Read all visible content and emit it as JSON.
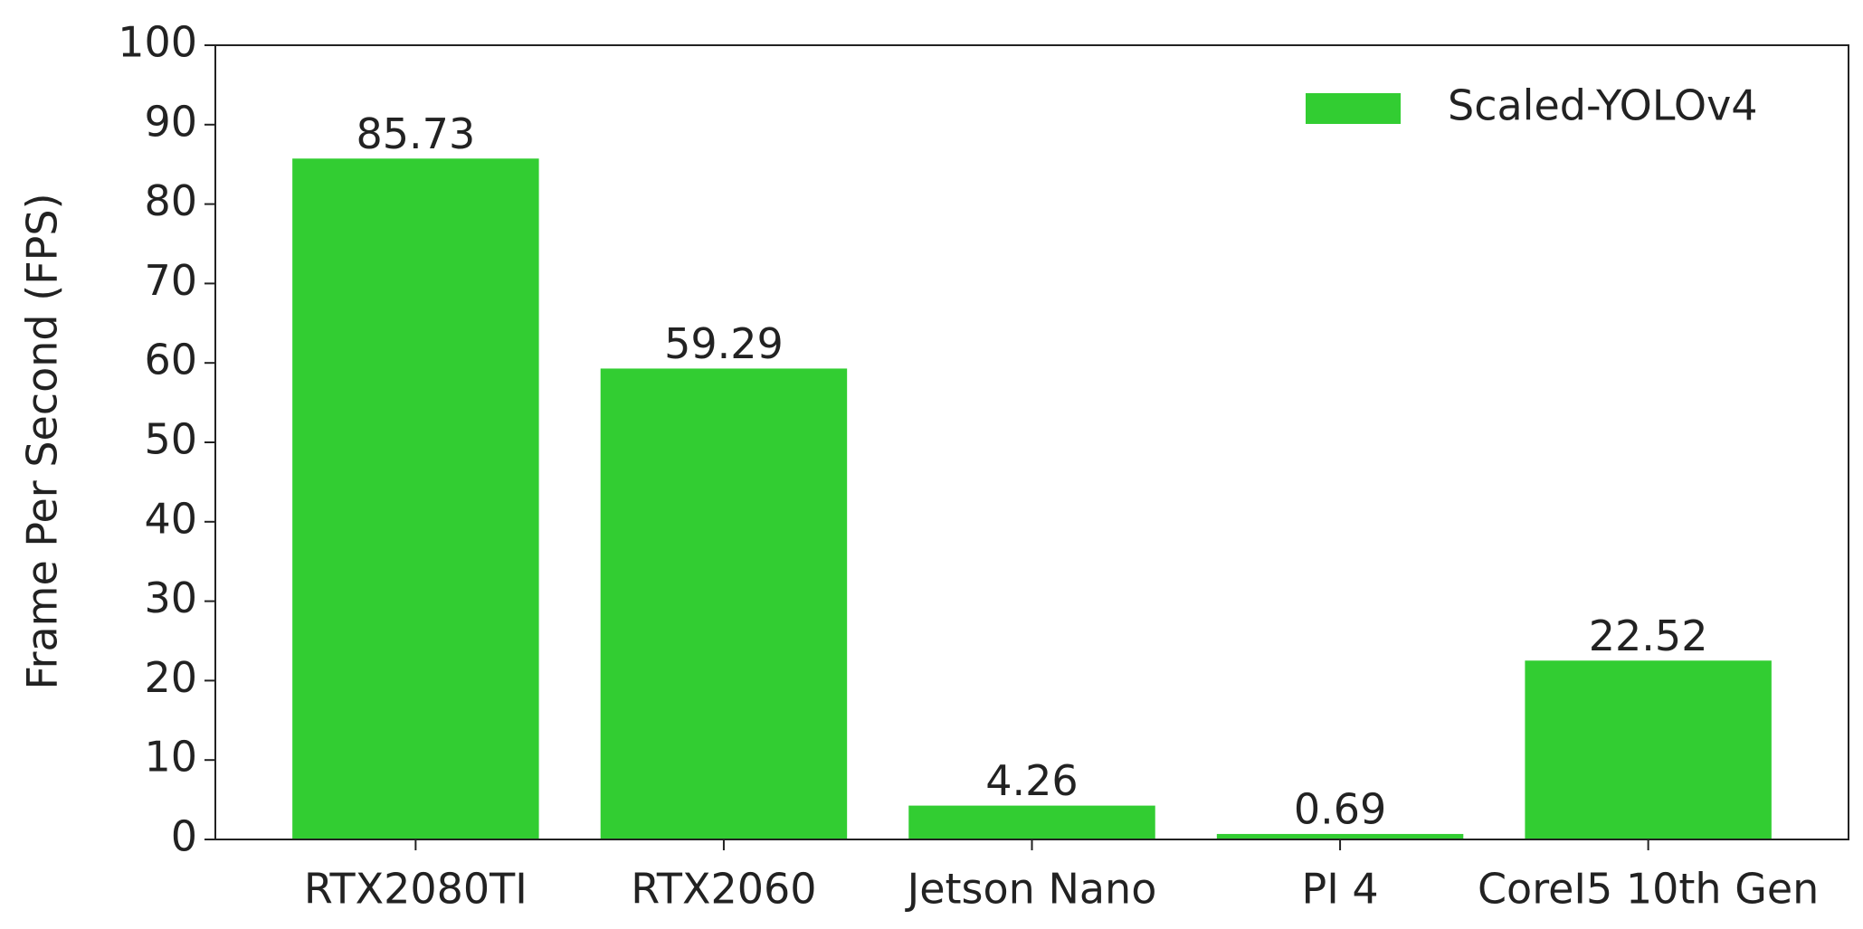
{
  "chart_data": {
    "type": "bar",
    "ylabel": "Frame Per Second (FPS)",
    "categories": [
      "RTX2080TI",
      "RTX2060",
      "Jetson Nano",
      "PI 4",
      "CoreI5 10th Gen"
    ],
    "series": [
      {
        "name": "Scaled-YOLOv4",
        "color": "#32cd32",
        "values": [
          85.73,
          59.29,
          4.26,
          0.69,
          22.52
        ]
      }
    ],
    "ylim": [
      0,
      100
    ],
    "yticks": [
      0,
      10,
      20,
      30,
      40,
      50,
      60,
      70,
      80,
      90,
      100
    ],
    "legend": "upper right"
  }
}
